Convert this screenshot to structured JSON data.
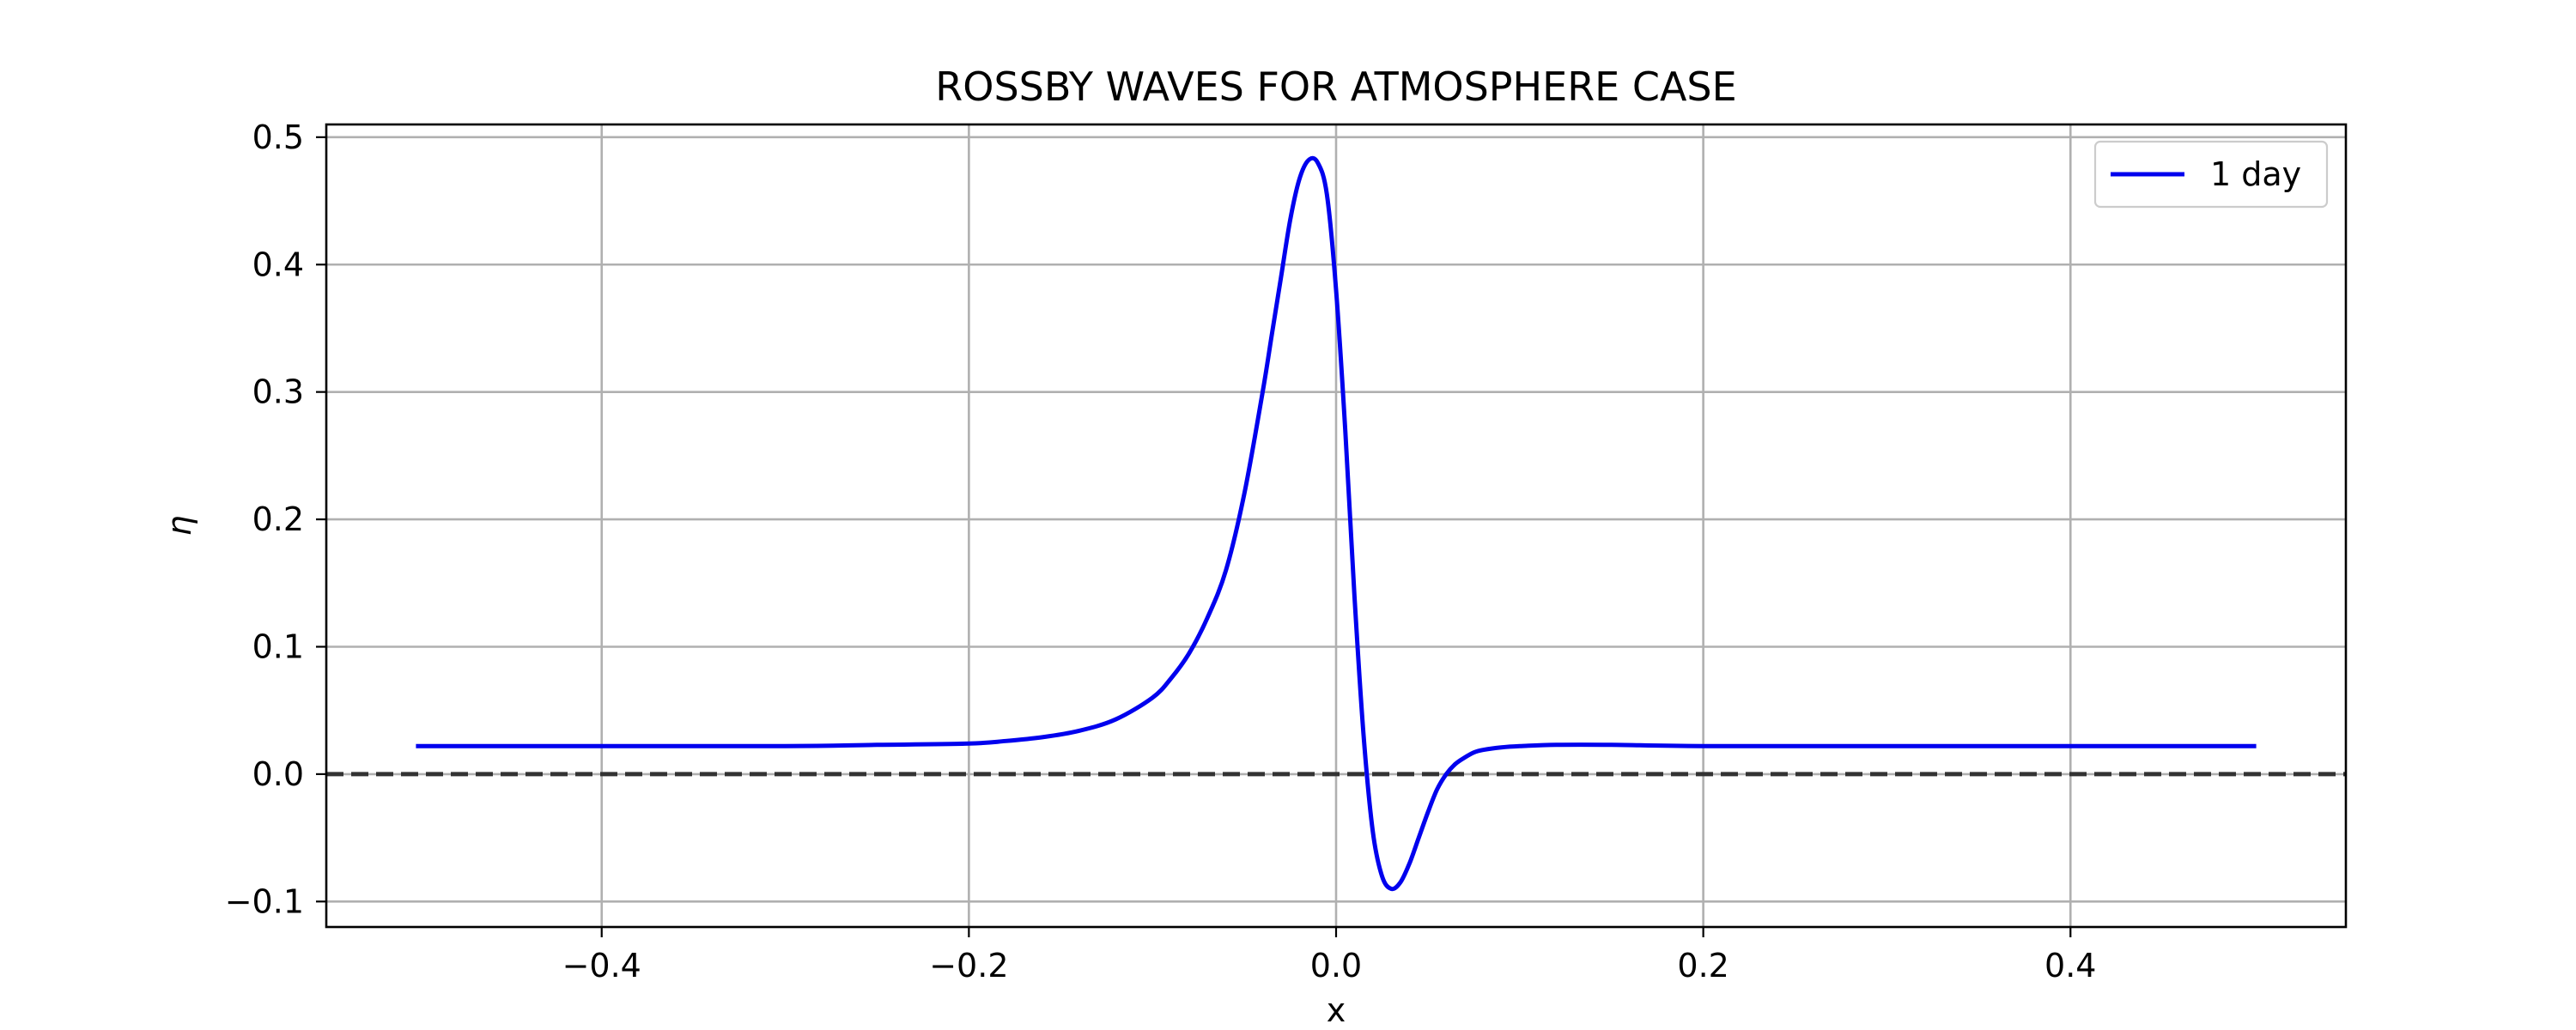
{
  "chart_data": {
    "type": "line",
    "title": "ROSSBY WAVES FOR ATMOSPHERE CASE",
    "xlabel": "x",
    "ylabel": "η",
    "xlim": [
      -0.55,
      0.55
    ],
    "ylim": [
      -0.12,
      0.51
    ],
    "x_ticks": [
      -0.4,
      -0.2,
      0.0,
      0.2,
      0.4
    ],
    "x_tick_labels": [
      "−0.4",
      "−0.2",
      "0.0",
      "0.2",
      "0.4"
    ],
    "y_ticks": [
      -0.1,
      0.0,
      0.1,
      0.2,
      0.3,
      0.4,
      0.5
    ],
    "y_tick_labels": [
      "−0.1",
      "0.0",
      "0.1",
      "0.2",
      "0.3",
      "0.4",
      "0.5"
    ],
    "grid": true,
    "legend_position": "top-right",
    "reference_line": {
      "y": 0.0,
      "style": "dashed",
      "color": "#333333"
    },
    "series": [
      {
        "name": "1 day",
        "color": "#0000ee",
        "x": [
          -0.5,
          -0.4,
          -0.3,
          -0.25,
          -0.2,
          -0.18,
          -0.16,
          -0.14,
          -0.12,
          -0.1,
          -0.09,
          -0.08,
          -0.07,
          -0.06,
          -0.05,
          -0.04,
          -0.035,
          -0.03,
          -0.025,
          -0.02,
          -0.015,
          -0.01,
          -0.005,
          0.0,
          0.005,
          0.01,
          0.015,
          0.02,
          0.025,
          0.03,
          0.035,
          0.04,
          0.045,
          0.05,
          0.055,
          0.06,
          0.065,
          0.07,
          0.075,
          0.08,
          0.09,
          0.1,
          0.12,
          0.15,
          0.2,
          0.3,
          0.4,
          0.5
        ],
        "y": [
          0.022,
          0.022,
          0.022,
          0.023,
          0.024,
          0.026,
          0.029,
          0.034,
          0.043,
          0.06,
          0.075,
          0.095,
          0.123,
          0.16,
          0.22,
          0.3,
          0.345,
          0.39,
          0.435,
          0.467,
          0.482,
          0.48,
          0.455,
          0.38,
          0.27,
          0.14,
          0.03,
          -0.045,
          -0.08,
          -0.09,
          -0.085,
          -0.07,
          -0.05,
          -0.03,
          -0.012,
          0.0,
          0.008,
          0.013,
          0.017,
          0.019,
          0.021,
          0.022,
          0.023,
          0.023,
          0.022,
          0.022,
          0.022,
          0.022
        ]
      }
    ]
  }
}
